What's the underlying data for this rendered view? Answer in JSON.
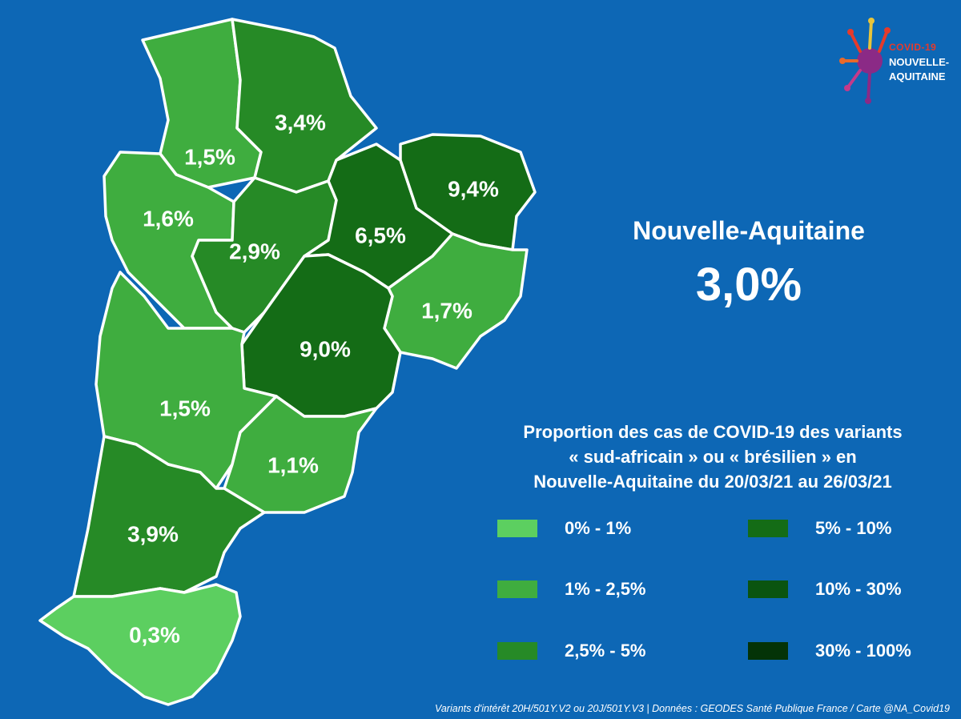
{
  "region": {
    "name": "Nouvelle-Aquitaine",
    "value": "3,0%"
  },
  "legend": {
    "title_lines": [
      "Proportion des cas de COVID-19 des variants",
      "« sud-africain » ou « brésilien » en",
      "Nouvelle-Aquitaine du 20/03/21 au 26/03/21"
    ],
    "items": [
      {
        "label": "0% - 1%",
        "color": "#5ccf60"
      },
      {
        "label": "1% - 2,5%",
        "color": "#3fad3f"
      },
      {
        "label": "2,5% - 5%",
        "color": "#268a26"
      },
      {
        "label": "5% - 10%",
        "color": "#146c16"
      },
      {
        "label": "10% - 30%",
        "color": "#0a5410"
      },
      {
        "label": "30% - 100%",
        "color": "#043307"
      }
    ]
  },
  "departments": [
    {
      "id": "deux-sevres",
      "value": "1,5%",
      "color": "#3fad3f"
    },
    {
      "id": "vienne",
      "value": "3,4%",
      "color": "#268a26"
    },
    {
      "id": "charente-maritime",
      "value": "1,6%",
      "color": "#3fad3f"
    },
    {
      "id": "charente",
      "value": "2,9%",
      "color": "#268a26"
    },
    {
      "id": "haute-vienne",
      "value": "6,5%",
      "color": "#146c16"
    },
    {
      "id": "creuse",
      "value": "9,4%",
      "color": "#146c16"
    },
    {
      "id": "correze",
      "value": "1,7%",
      "color": "#3fad3f"
    },
    {
      "id": "dordogne",
      "value": "9,0%",
      "color": "#146c16"
    },
    {
      "id": "gironde",
      "value": "1,5%",
      "color": "#3fad3f"
    },
    {
      "id": "lot-et-garonne",
      "value": "1,1%",
      "color": "#3fad3f"
    },
    {
      "id": "landes",
      "value": "3,9%",
      "color": "#268a26"
    },
    {
      "id": "pyrenees-atlantiques",
      "value": "0,3%",
      "color": "#5ccf60"
    }
  ],
  "logo": {
    "line1": "COVID-19",
    "line2": "NOUVELLE-",
    "line3": "AQUITAINE"
  },
  "footer": "Variants d'intérêt 20H/501Y.V2 ou 20J/501Y.V3  | Données : GEODES Santé Publique France / Carte @NA_Covid19"
}
